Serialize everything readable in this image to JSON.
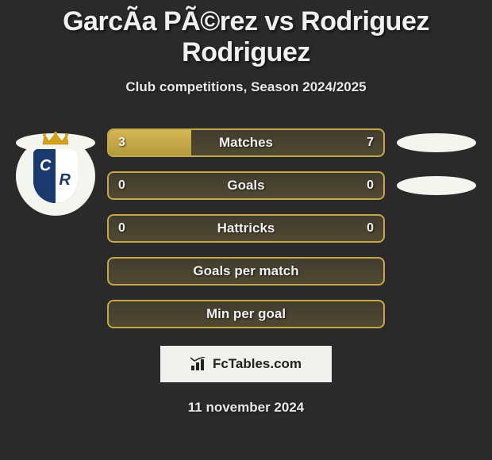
{
  "title": "GarcÃ­a PÃ©rez vs Rodriguez Rodriguez",
  "subtitle": "Club competitions, Season 2024/2025",
  "date": "11 november 2024",
  "colors": {
    "background": "#2a2a2a",
    "bar_border": "#c4a747",
    "bar_fill": "#c4a747",
    "text": "#f0f0f0",
    "ellipse": "#f5f5f0",
    "badge_primary": "#1a3a6e",
    "badge_crown": "#d4a017",
    "box_bg": "#f0f0ec"
  },
  "rows": [
    {
      "label": "Matches",
      "left_value": "3",
      "right_value": "7",
      "left_fill_pct": 30,
      "has_ellipse_left": true,
      "has_ellipse_right": true
    },
    {
      "label": "Goals",
      "left_value": "0",
      "right_value": "0",
      "left_fill_pct": 0,
      "has_ellipse_left": false,
      "has_ellipse_right": true
    },
    {
      "label": "Hattricks",
      "left_value": "0",
      "right_value": "0",
      "left_fill_pct": 0,
      "has_ellipse_left": false,
      "has_ellipse_right": false
    },
    {
      "label": "Goals per match",
      "left_value": "",
      "right_value": "",
      "left_fill_pct": 0,
      "has_ellipse_left": false,
      "has_ellipse_right": false
    },
    {
      "label": "Min per goal",
      "left_value": "",
      "right_value": "",
      "left_fill_pct": 0,
      "has_ellipse_left": false,
      "has_ellipse_right": false
    }
  ],
  "fctables_label": "FcTables.com"
}
